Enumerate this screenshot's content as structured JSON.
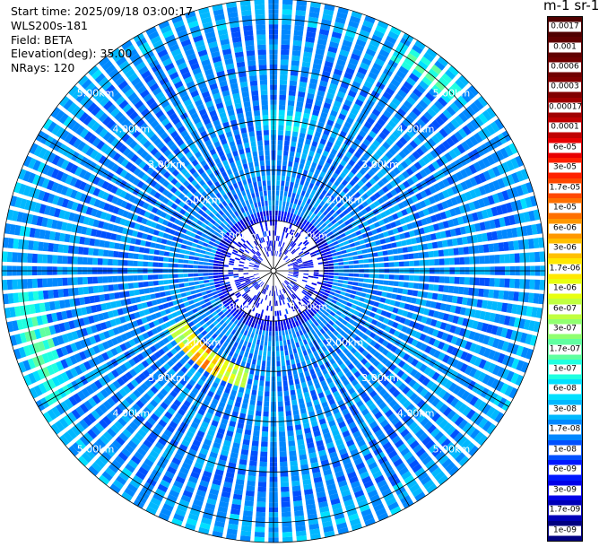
{
  "info": {
    "start_time": "Start time: 2025/09/18 03:00:17",
    "instrument": "WLS200s-181",
    "field": "Field: BETA",
    "elevation": "Elevation(deg): 35.00",
    "nrays": "NRays: 120"
  },
  "colorbar": {
    "title": "m-1 sr-1",
    "ticks": [
      "1e-09",
      "1.7e-09",
      "3e-09",
      "6e-09",
      "1e-08",
      "1.7e-08",
      "3e-08",
      "6e-08",
      "1e-07",
      "1.7e-07",
      "3e-07",
      "6e-07",
      "1e-06",
      "1.7e-06",
      "3e-06",
      "6e-06",
      "1e-05",
      "1.7e-05",
      "3e-05",
      "6e-05",
      "0.0001",
      "0.00017",
      "0.0003",
      "0.0006",
      "0.001",
      "0.0017"
    ],
    "colors": [
      "#000080",
      "#0000b8",
      "#0000e8",
      "#0018ff",
      "#0050ff",
      "#0088ff",
      "#00b8ff",
      "#00e0ff",
      "#20ffe0",
      "#60ffa0",
      "#90ff70",
      "#c0ff40",
      "#e8ff10",
      "#ffe800",
      "#ffc000",
      "#ff9800",
      "#ff7000",
      "#ff4800",
      "#ff2000",
      "#e80000",
      "#c00000",
      "#a00000",
      "#800000",
      "#700000",
      "#600000",
      "#500000"
    ]
  },
  "chart_data": {
    "type": "heatmap",
    "projection": "polar PPI (plan position indicator)",
    "field": "BETA",
    "elevation_deg": 35.0,
    "nrays": 120,
    "range_unit": "km",
    "max_range_km": 5.4,
    "range_rings_km": [
      1,
      2,
      3,
      4,
      5
    ],
    "range_ring_labels": [
      "1.00km",
      "2.00km",
      "3.00km",
      "4.00km",
      "5.00km"
    ],
    "azimuth_spokes_deg": [
      0,
      30,
      60,
      90,
      120,
      150,
      180,
      210,
      240,
      270,
      300,
      330
    ],
    "colorscale": "log10, 1e-09 to 0.0017",
    "background_level_log10": -7.75,
    "features": [
      {
        "range_km": [
          2.0,
          2.4
        ],
        "azimuth_deg": [
          195,
          240
        ],
        "peak_value": "1.7e-05"
      },
      {
        "range_km": [
          4.8,
          5.2
        ],
        "azimuth_deg": [
          30,
          45
        ],
        "peak_value": "3e-07"
      },
      {
        "range_km": [
          4.6,
          5.2
        ],
        "azimuth_deg": [
          240,
          265
        ],
        "peak_value": "3e-07"
      },
      {
        "range_km": [
          2.8,
          3.2
        ],
        "azimuth_deg": [
          355,
          15
        ],
        "peak_value": "1e-07"
      }
    ]
  }
}
